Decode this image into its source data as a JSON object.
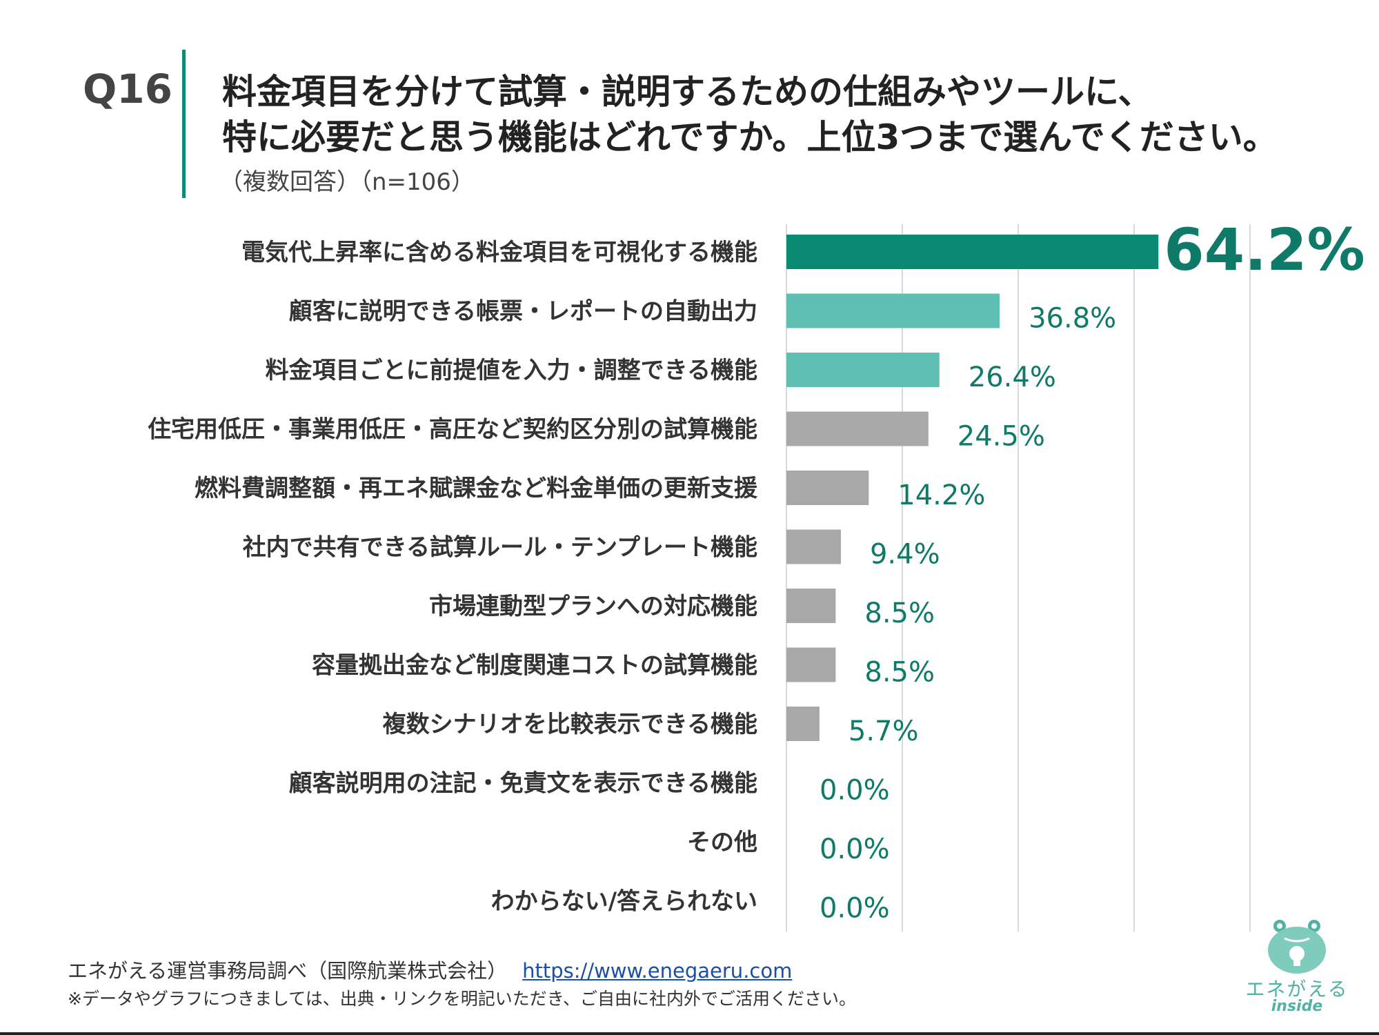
{
  "question": {
    "number": "Q16",
    "title_line1": "料金項目を分けて試算・説明するための仕組みやツールに、",
    "title_line2": "特に必要だと思う機能はどれですか。上位3つまで選んでください。",
    "subtitle": "（複数回答）（n=106）"
  },
  "chart_data": {
    "type": "bar",
    "orientation": "horizontal",
    "categories": [
      "電気代上昇率に含める料金項目を可視化する機能",
      "顧客に説明できる帳票・レポートの自動出力",
      "料金項目ごとに前提値を入力・調整できる機能",
      "住宅用低圧・事業用低圧・高圧など契約区分別の試算機能",
      "燃料費調整額・再エネ賦課金など料金単価の更新支援",
      "社内で共有できる試算ルール・テンプレート機能",
      "市場連動型プランへの対応機能",
      "容量拠出金など制度関連コストの試算機能",
      "複数シナリオを比較表示できる機能",
      "顧客説明用の注記・免責文を表示できる機能",
      "その他",
      "わからない/答えられない"
    ],
    "values": [
      64.2,
      36.8,
      26.4,
      24.5,
      14.2,
      9.4,
      8.5,
      8.5,
      5.7,
      0.0,
      0.0,
      0.0
    ],
    "value_labels": [
      "64.2%",
      "36.8%",
      "26.4%",
      "24.5%",
      "14.2%",
      "9.4%",
      "8.5%",
      "8.5%",
      "5.7%",
      "0.0%",
      "0.0%",
      "0.0%"
    ],
    "bar_colors": [
      "#0b8a73",
      "#5fbfb3",
      "#5fbfb3",
      "#a8a8a8",
      "#a8a8a8",
      "#a8a8a8",
      "#a8a8a8",
      "#a8a8a8",
      "#a8a8a8",
      "#a8a8a8",
      "#a8a8a8",
      "#a8a8a8"
    ],
    "label_color": "#0f7a68",
    "xlim": [
      0,
      100
    ],
    "gridlines": [
      0,
      20,
      40,
      60,
      80
    ],
    "grid": true
  },
  "footer": {
    "source": "エネがえる運営事務局調べ（国際航業株式会社）",
    "url": "https://www.enegaeru.com",
    "note": "※データやグラフにつきましては、出典・リンクを明記いただき、ご自由に社内外でご活用ください。"
  },
  "logo": {
    "name": "エネがえる",
    "sub": "inside"
  }
}
